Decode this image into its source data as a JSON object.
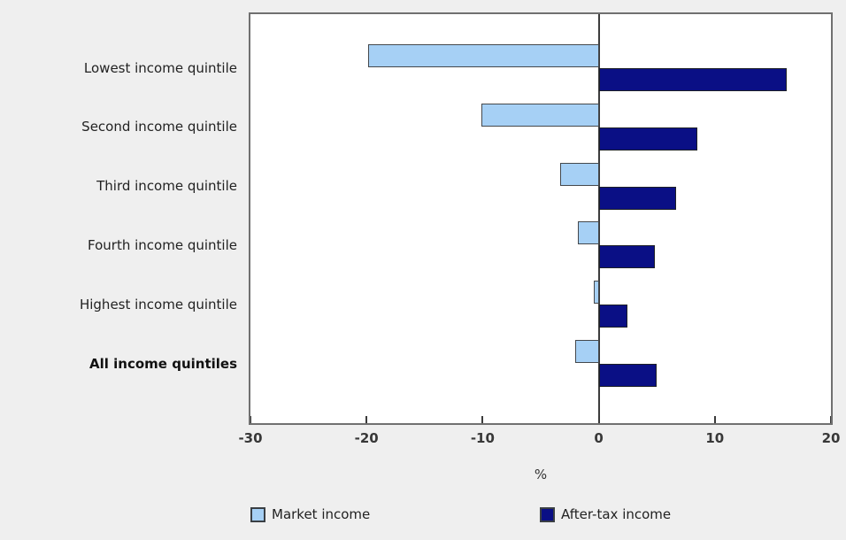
{
  "figure": {
    "background_color": "#efefef",
    "plot_background": "#ffffff",
    "plot_border_color": "#707070"
  },
  "chart_data": {
    "type": "bar",
    "orientation": "horizontal",
    "title": "",
    "categories": [
      "Lowest income quintile",
      "Second income quintile",
      "Third income quintile",
      "Fourth income quintile",
      "Highest income quintile",
      "All income quintiles"
    ],
    "bold_categories": [
      "All income quintiles"
    ],
    "series": [
      {
        "name": "Market income",
        "color": "#a6d0f5",
        "border_color": "#44484c",
        "values": [
          -19.9,
          -10.1,
          -3.3,
          -1.8,
          -0.4,
          -2.0
        ]
      },
      {
        "name": "After-tax income",
        "color": "#0a0f85",
        "border_color": "#1d2026",
        "values": [
          16.2,
          8.5,
          6.7,
          4.8,
          2.5,
          5.0
        ]
      }
    ],
    "xlabel": "%",
    "xlim": [
      -30,
      20
    ],
    "xticks": [
      "-30",
      "-20",
      "-10",
      "0",
      "10",
      "20"
    ],
    "grid": false,
    "zero_line": true,
    "legend_position": "bottom"
  }
}
